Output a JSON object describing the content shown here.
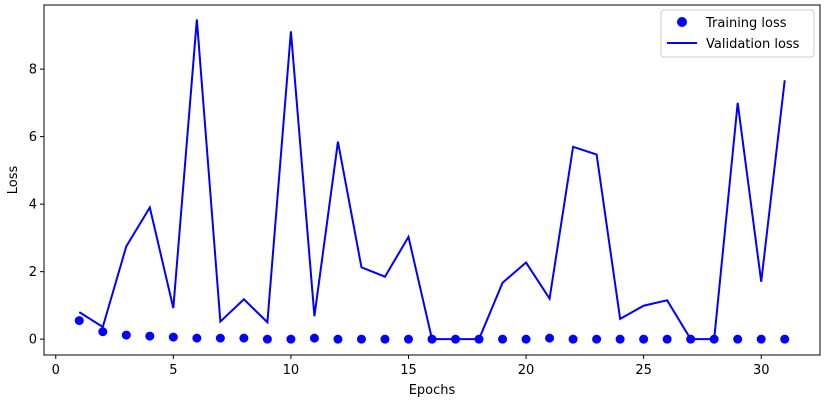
{
  "chart_data": {
    "type": "line",
    "title": "",
    "xlabel": "Epochs",
    "ylabel": "Loss",
    "xlim": [
      -0.5,
      32.5
    ],
    "ylim": [
      -0.47,
      9.9
    ],
    "xticks": [
      0,
      5,
      10,
      15,
      20,
      25,
      30
    ],
    "yticks": [
      0,
      2,
      4,
      6,
      8
    ],
    "grid": false,
    "legend_position": "top-right",
    "series": [
      {
        "name": "Training loss",
        "kind": "scatter",
        "color": "#0000ff",
        "x": [
          1,
          2,
          3,
          4,
          5,
          6,
          7,
          8,
          9,
          10,
          11,
          12,
          13,
          14,
          15,
          16,
          17,
          18,
          19,
          20,
          21,
          22,
          23,
          24,
          25,
          26,
          27,
          28,
          29,
          30,
          31
        ],
        "y": [
          0.55,
          0.22,
          0.12,
          0.09,
          0.06,
          0.03,
          0.03,
          0.03,
          0.0,
          0.0,
          0.03,
          0.0,
          0.0,
          0.0,
          0.0,
          0.0,
          0.0,
          0.0,
          0.0,
          0.0,
          0.03,
          0.0,
          0.0,
          0.0,
          0.0,
          0.0,
          0.0,
          0.0,
          0.0,
          0.0,
          0.0
        ]
      },
      {
        "name": "Validation loss",
        "kind": "line",
        "color": "#0000ff",
        "x": [
          1,
          2,
          3,
          4,
          5,
          6,
          7,
          8,
          9,
          10,
          11,
          12,
          13,
          14,
          15,
          16,
          17,
          18,
          19,
          20,
          21,
          22,
          23,
          24,
          25,
          26,
          27,
          28,
          29,
          30,
          31
        ],
        "y": [
          0.8,
          0.36,
          2.75,
          3.9,
          0.92,
          9.47,
          0.52,
          1.18,
          0.5,
          9.12,
          0.68,
          5.85,
          2.13,
          1.85,
          3.03,
          0.0,
          0.0,
          0.0,
          1.67,
          2.27,
          1.2,
          5.7,
          5.47,
          0.6,
          0.99,
          1.15,
          0.0,
          0.0,
          7.0,
          1.7,
          7.67
        ]
      }
    ]
  }
}
